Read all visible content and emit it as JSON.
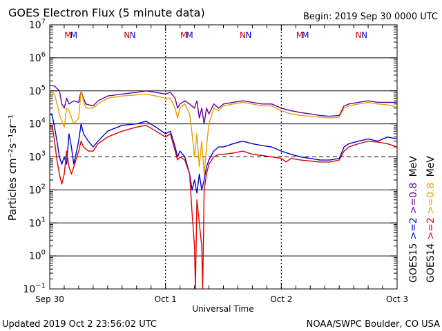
{
  "chart_data": {
    "type": "line",
    "title": "GOES Electron Flux (5 minute data)",
    "begin_label": "Begin: 2019 Sep 30 0000 UTC",
    "xlabel": "Universal Time",
    "ylabel": "Particles cm⁻²s⁻¹sr⁻¹",
    "x_ticks": [
      "Sep 30",
      "Oct 1",
      "Oct 2",
      "Oct 3"
    ],
    "xlim_hours": [
      0,
      72
    ],
    "yscale": "log",
    "ylim": [
      0.1,
      10000000
    ],
    "y_tick_exponents": [
      -1,
      0,
      1,
      2,
      3,
      4,
      5,
      6,
      7
    ],
    "y_tick_base": "10",
    "threshold_line": 1000,
    "markers": [
      {
        "hour": 3.8,
        "text": "M",
        "color": "#cc0000"
      },
      {
        "hour": 5.0,
        "text": "M",
        "color": "#0000cc"
      },
      {
        "hour": 16.0,
        "text": "N",
        "color": "#cc0000"
      },
      {
        "hour": 17.2,
        "text": "N",
        "color": "#0000cc"
      },
      {
        "hour": 27.8,
        "text": "M",
        "color": "#cc0000"
      },
      {
        "hour": 29.0,
        "text": "M",
        "color": "#0000cc"
      },
      {
        "hour": 40.0,
        "text": "N",
        "color": "#cc0000"
      },
      {
        "hour": 41.2,
        "text": "N",
        "color": "#0000cc"
      },
      {
        "hour": 51.8,
        "text": "M",
        "color": "#cc0000"
      },
      {
        "hour": 53.0,
        "text": "M",
        "color": "#0000cc"
      },
      {
        "hour": 64.0,
        "text": "N",
        "color": "#cc0000"
      },
      {
        "hour": 65.2,
        "text": "N",
        "color": "#0000cc"
      }
    ],
    "legend": {
      "placement": "right",
      "items": [
        {
          "text": "GOES15",
          "color": "#000000"
        },
        {
          "text": ">=2",
          "color": "#0000cc"
        },
        {
          "text": ">=0.8",
          "color": "#660099"
        },
        {
          "text": "MeV",
          "color": "#000000"
        },
        {
          "text": "GOES14",
          "color": "#000000"
        },
        {
          "text": ">=2",
          "color": "#dd0000"
        },
        {
          "text": ">=0.8",
          "color": "#e8a000"
        },
        {
          "text": "MeV",
          "color": "#000000"
        }
      ]
    },
    "series": [
      {
        "color": "#660099",
        "points": [
          [
            0,
            150000
          ],
          [
            1,
            140000
          ],
          [
            2,
            100000
          ],
          [
            2.5,
            40000
          ],
          [
            3,
            30000
          ],
          [
            3.5,
            60000
          ],
          [
            4,
            40000
          ],
          [
            5,
            50000
          ],
          [
            6,
            45000
          ],
          [
            6.5,
            100000
          ],
          [
            7,
            60000
          ],
          [
            7.5,
            40000
          ],
          [
            9,
            35000
          ],
          [
            10,
            50000
          ],
          [
            12,
            70000
          ],
          [
            15,
            80000
          ],
          [
            18,
            90000
          ],
          [
            20,
            100000
          ],
          [
            22,
            90000
          ],
          [
            24,
            80000
          ],
          [
            25,
            90000
          ],
          [
            26,
            60000
          ],
          [
            26.5,
            30000
          ],
          [
            27,
            40000
          ],
          [
            28,
            50000
          ],
          [
            29,
            40000
          ],
          [
            30,
            30000
          ],
          [
            30.5,
            50000
          ],
          [
            31,
            15000
          ],
          [
            31.5,
            30000
          ],
          [
            32,
            10000
          ],
          [
            32.5,
            30000
          ],
          [
            33,
            20000
          ],
          [
            34,
            40000
          ],
          [
            35,
            30000
          ],
          [
            36,
            40000
          ],
          [
            38,
            45000
          ],
          [
            40,
            50000
          ],
          [
            42,
            45000
          ],
          [
            44,
            40000
          ],
          [
            46,
            40000
          ],
          [
            48,
            30000
          ],
          [
            50,
            25000
          ],
          [
            52,
            22000
          ],
          [
            54,
            20000
          ],
          [
            56,
            18000
          ],
          [
            58,
            17000
          ],
          [
            60,
            18000
          ],
          [
            61,
            35000
          ],
          [
            62,
            40000
          ],
          [
            64,
            45000
          ],
          [
            66,
            50000
          ],
          [
            68,
            45000
          ],
          [
            70,
            45000
          ],
          [
            72,
            45000
          ]
        ]
      },
      {
        "color": "#e8a000",
        "points": [
          [
            0,
            100000
          ],
          [
            1,
            80000
          ],
          [
            1.5,
            40000
          ],
          [
            2,
            20000
          ],
          [
            2.5,
            12000
          ],
          [
            3,
            8000
          ],
          [
            3.5,
            30000
          ],
          [
            4,
            25000
          ],
          [
            5,
            10000
          ],
          [
            6,
            15000
          ],
          [
            6.5,
            100000
          ],
          [
            7,
            50000
          ],
          [
            7.5,
            30000
          ],
          [
            9,
            30000
          ],
          [
            10,
            40000
          ],
          [
            12,
            60000
          ],
          [
            15,
            70000
          ],
          [
            18,
            75000
          ],
          [
            20,
            80000
          ],
          [
            22,
            70000
          ],
          [
            24,
            60000
          ],
          [
            25,
            60000
          ],
          [
            26,
            30000
          ],
          [
            26.5,
            15000
          ],
          [
            27,
            30000
          ],
          [
            28,
            40000
          ],
          [
            29,
            20000
          ],
          [
            29.5,
            5000
          ],
          [
            30,
            1000
          ],
          [
            30.5,
            5000
          ],
          [
            31,
            500
          ],
          [
            31.5,
            3000
          ],
          [
            32,
            300
          ],
          [
            32.5,
            2000
          ],
          [
            33,
            10000
          ],
          [
            34,
            30000
          ],
          [
            35,
            25000
          ],
          [
            36,
            35000
          ],
          [
            38,
            40000
          ],
          [
            40,
            45000
          ],
          [
            42,
            40000
          ],
          [
            44,
            35000
          ],
          [
            46,
            35000
          ],
          [
            48,
            25000
          ],
          [
            50,
            20000
          ],
          [
            52,
            18000
          ],
          [
            54,
            17000
          ],
          [
            56,
            16000
          ],
          [
            58,
            15000
          ],
          [
            60,
            16000
          ],
          [
            61,
            30000
          ],
          [
            62,
            35000
          ],
          [
            64,
            40000
          ],
          [
            66,
            45000
          ],
          [
            68,
            40000
          ],
          [
            70,
            38000
          ],
          [
            72,
            32000
          ]
        ]
      },
      {
        "color": "#0000cc",
        "points": [
          [
            0,
            20000
          ],
          [
            0.5,
            18000
          ],
          [
            1,
            8000
          ],
          [
            1.5,
            3000
          ],
          [
            2,
            1000
          ],
          [
            2.5,
            600
          ],
          [
            3,
            1000
          ],
          [
            3.5,
            600
          ],
          [
            4,
            5000
          ],
          [
            4.5,
            2000
          ],
          [
            5,
            600
          ],
          [
            6,
            3000
          ],
          [
            6.5,
            10000
          ],
          [
            7,
            5000
          ],
          [
            8,
            3000
          ],
          [
            9,
            2000
          ],
          [
            10,
            3000
          ],
          [
            12,
            6000
          ],
          [
            15,
            9000
          ],
          [
            18,
            10000
          ],
          [
            20,
            12000
          ],
          [
            22,
            8000
          ],
          [
            24,
            5000
          ],
          [
            25,
            6000
          ],
          [
            26,
            2000
          ],
          [
            26.5,
            1000
          ],
          [
            27,
            1500
          ],
          [
            28,
            1000
          ],
          [
            29,
            300
          ],
          [
            29.5,
            100
          ],
          [
            30,
            200
          ],
          [
            30.5,
            80
          ],
          [
            31,
            300
          ],
          [
            31.5,
            100
          ],
          [
            32,
            200
          ],
          [
            32.5,
            500
          ],
          [
            33,
            800
          ],
          [
            34,
            1500
          ],
          [
            35,
            2000
          ],
          [
            36,
            2000
          ],
          [
            38,
            2500
          ],
          [
            40,
            3000
          ],
          [
            42,
            2500
          ],
          [
            44,
            2200
          ],
          [
            46,
            2000
          ],
          [
            48,
            1500
          ],
          [
            50,
            1200
          ],
          [
            52,
            1000
          ],
          [
            54,
            900
          ],
          [
            56,
            800
          ],
          [
            58,
            800
          ],
          [
            60,
            900
          ],
          [
            61,
            2000
          ],
          [
            62,
            2500
          ],
          [
            64,
            3000
          ],
          [
            66,
            3500
          ],
          [
            68,
            3000
          ],
          [
            70,
            4000
          ],
          [
            72,
            3500
          ]
        ]
      },
      {
        "color": "#dd0000",
        "points": [
          [
            0,
            8000
          ],
          [
            0.5,
            9000
          ],
          [
            1,
            3000
          ],
          [
            1.5,
            800
          ],
          [
            2,
            300
          ],
          [
            2.5,
            150
          ],
          [
            3,
            300
          ],
          [
            3.5,
            1500
          ],
          [
            4,
            500
          ],
          [
            4.5,
            300
          ],
          [
            5,
            500
          ],
          [
            6,
            1500
          ],
          [
            6.5,
            3000
          ],
          [
            7,
            2000
          ],
          [
            8,
            1500
          ],
          [
            9,
            1500
          ],
          [
            10,
            2500
          ],
          [
            12,
            4000
          ],
          [
            15,
            6000
          ],
          [
            18,
            8000
          ],
          [
            20,
            9000
          ],
          [
            22,
            6000
          ],
          [
            24,
            4000
          ],
          [
            25,
            5000
          ],
          [
            26,
            1500
          ],
          [
            26.5,
            800
          ],
          [
            27,
            1000
          ],
          [
            28,
            800
          ],
          [
            29,
            300
          ],
          [
            29.5,
            20
          ],
          [
            30,
            2
          ],
          [
            30.2,
            0.1
          ],
          [
            30.5,
            50
          ],
          [
            31,
            10
          ],
          [
            31.5,
            2
          ],
          [
            31.7,
            0.1
          ],
          [
            32,
            100
          ],
          [
            32.5,
            300
          ],
          [
            33,
            600
          ],
          [
            34,
            1000
          ],
          [
            35,
            1200
          ],
          [
            36,
            1200
          ],
          [
            38,
            1300
          ],
          [
            40,
            1500
          ],
          [
            42,
            1200
          ],
          [
            44,
            1100
          ],
          [
            46,
            1000
          ],
          [
            48,
            900
          ],
          [
            49,
            700
          ],
          [
            50,
            900
          ],
          [
            52,
            800
          ],
          [
            54,
            750
          ],
          [
            56,
            700
          ],
          [
            58,
            700
          ],
          [
            60,
            800
          ],
          [
            61,
            1500
          ],
          [
            62,
            2000
          ],
          [
            64,
            2500
          ],
          [
            66,
            3000
          ],
          [
            68,
            2800
          ],
          [
            70,
            2500
          ],
          [
            72,
            2000
          ]
        ]
      }
    ]
  },
  "footer": {
    "updated": "Updated 2019 Oct  2 23:56:02 UTC",
    "credit": "NOAA/SWPC Boulder, CO USA"
  }
}
